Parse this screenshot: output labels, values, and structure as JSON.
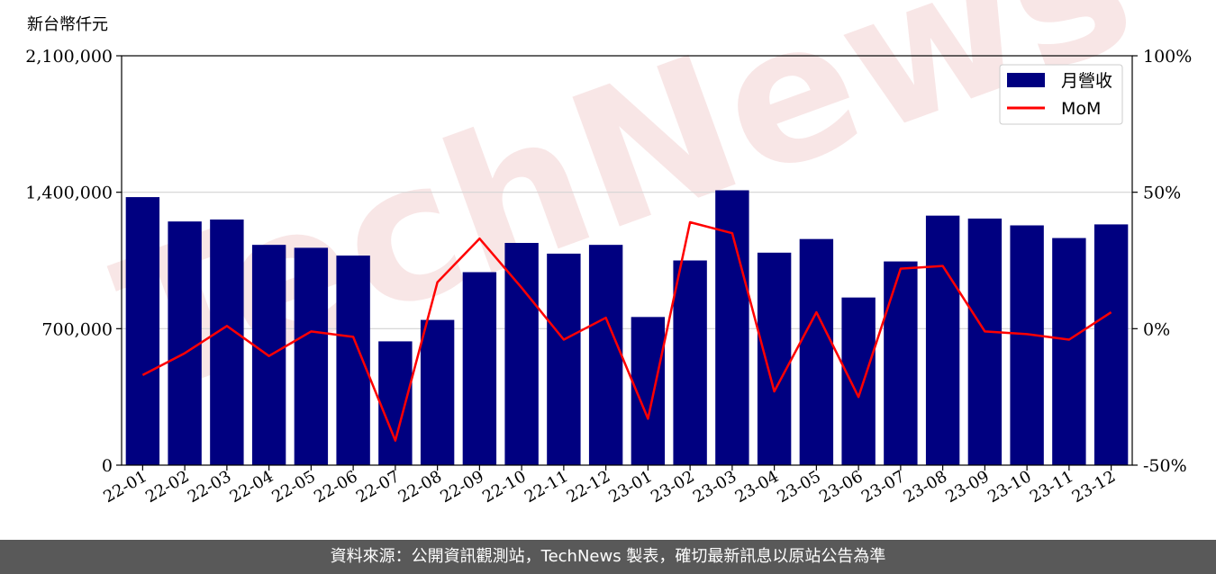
{
  "unit_label": "新台幣仟元",
  "footer_text": "資料來源：公開資訊觀測站，TechNews 製表，確切最新訊息以原站公告為準",
  "watermark_text": "TechNews",
  "colors": {
    "bar": "#000080",
    "line": "#ff0000",
    "grid": "#d3d3d3",
    "footer_bg": "#595959"
  },
  "chart_data": {
    "type": "bar",
    "categories": [
      "22-01",
      "22-02",
      "22-03",
      "22-04",
      "22-05",
      "22-06",
      "22-07",
      "22-08",
      "22-09",
      "22-10",
      "22-11",
      "22-12",
      "23-01",
      "23-02",
      "23-03",
      "23-04",
      "23-05",
      "23-06",
      "23-07",
      "23-08",
      "23-09",
      "23-10",
      "23-11",
      "23-12"
    ],
    "series": [
      {
        "name": "月營收",
        "type": "bar",
        "axis": "left",
        "values": [
          1375000,
          1250000,
          1260000,
          1130000,
          1115000,
          1075000,
          635000,
          745000,
          990000,
          1140000,
          1085000,
          1130000,
          760000,
          1050000,
          1410000,
          1090000,
          1160000,
          860000,
          1045000,
          1280000,
          1265000,
          1230000,
          1165000,
          1235000
        ]
      },
      {
        "name": "MoM",
        "type": "line",
        "axis": "right",
        "values": [
          -17,
          -9,
          1,
          -10,
          -1,
          -3,
          -41,
          17,
          33,
          15,
          -4,
          4,
          -33,
          39,
          35,
          -23,
          6,
          -25,
          22,
          23,
          -1,
          -2,
          -4,
          6
        ]
      }
    ],
    "ylim_left": [
      0,
      2100000
    ],
    "yticks_left": [
      "0",
      "700,000",
      "1,400,000",
      "2,100,000"
    ],
    "ylim_right": [
      -50,
      100
    ],
    "yticks_right": [
      "-50%",
      "0%",
      "50%",
      "100%"
    ],
    "grid": "horizontal",
    "legend_position": "top-right"
  }
}
